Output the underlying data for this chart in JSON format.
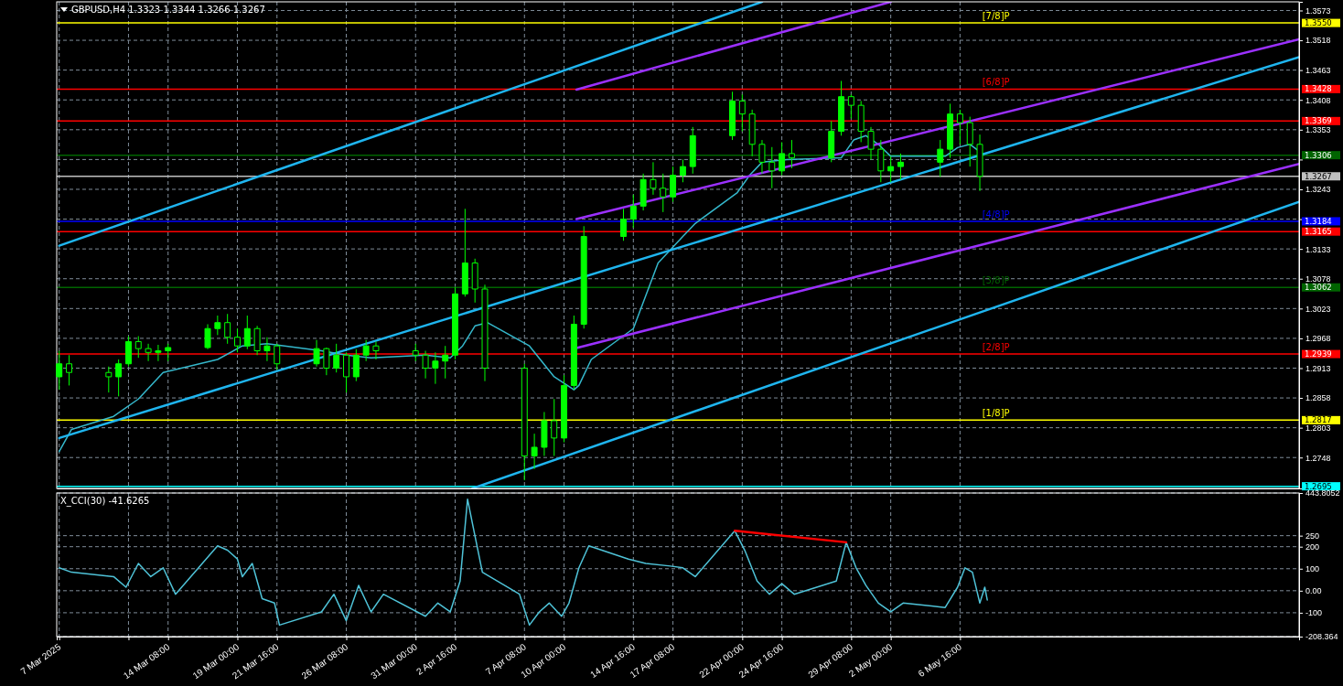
{
  "chart_data": [
    {
      "type": "candlestick",
      "title": "GBPUSD,H4 1.3323 1.3344 1.3266 1.3267",
      "xlim": [
        "2025-03-06T20:00",
        "2025-05-29T12:00"
      ],
      "ylim": [
        1.2691,
        1.3589
      ],
      "xticks": [
        "2025-03-07T00:00",
        "2025-03-11T16:00",
        "2025-03-14T08:00",
        "2025-03-19T00:00",
        "2025-03-21T16:00",
        "2025-03-26T08:00",
        "2025-03-31T00:00",
        "2025-04-02T16:00",
        "2025-04-07T08:00",
        "2025-04-10T00:00",
        "2025-04-14T16:00",
        "2025-04-17T08:00",
        "2025-04-22T00:00",
        "2025-04-24T16:00",
        "2025-04-29T08:00",
        "2025-05-02T00:00",
        "2025-05-06T16:00"
      ],
      "yticks": [
        1.2748,
        1.2803,
        1.2858,
        1.2913,
        1.2968,
        1.3023,
        1.3078,
        1.3133,
        {
          "value": 1.3188,
          "label": null
        },
        1.3243,
        {
          "value": 1.3298,
          "label": null
        },
        1.3353,
        1.3408,
        1.3463,
        1.3518,
        1.3573
      ],
      "tick_labels": "y",
      "grid": true,
      "series": [
        {
          "color": "#00ff00",
          "x": [
            "2025-03-07T00:00",
            "2025-03-07T16:00",
            "2025-03-10T08:00",
            "2025-03-11T00:00",
            "2025-03-11T16:00",
            "2025-03-12T08:00",
            "2025-03-13T00:00",
            "2025-03-13T16:00",
            "2025-03-14T08:00",
            "2025-03-17T00:00",
            "2025-03-17T16:00",
            "2025-03-18T08:00",
            "2025-03-19T00:00",
            "2025-03-19T16:00",
            "2025-03-20T08:00",
            "2025-03-21T00:00",
            "2025-03-21T16:00",
            "2025-03-24T08:00",
            "2025-03-25T00:00",
            "2025-03-25T16:00",
            "2025-03-26T08:00",
            "2025-03-27T00:00",
            "2025-03-27T16:00",
            "2025-03-28T08:00",
            "2025-03-31T00:00",
            "2025-03-31T16:00",
            "2025-04-01T08:00",
            "2025-04-02T00:00",
            "2025-04-02T16:00",
            "2025-04-03T08:00",
            "2025-04-04T00:00",
            "2025-04-04T16:00",
            "2025-04-07T08:00",
            "2025-04-08T00:00",
            "2025-04-08T16:00",
            "2025-04-09T08:00",
            "2025-04-10T00:00",
            "2025-04-10T16:00",
            "2025-04-11T08:00",
            "2025-04-14T00:00",
            "2025-04-14T16:00",
            "2025-04-15T08:00",
            "2025-04-16T00:00",
            "2025-04-16T16:00",
            "2025-04-17T08:00",
            "2025-04-18T00:00",
            "2025-04-18T16:00",
            "2025-04-21T08:00",
            "2025-04-22T00:00",
            "2025-04-22T16:00",
            "2025-04-23T08:00",
            "2025-04-24T00:00",
            "2025-04-24T16:00",
            "2025-04-25T08:00",
            "2025-04-28T00:00",
            "2025-04-28T16:00",
            "2025-04-29T08:00",
            "2025-04-30T00:00",
            "2025-04-30T16:00",
            "2025-05-01T08:00",
            "2025-05-02T00:00",
            "2025-05-02T16:00",
            "2025-05-05T08:00",
            "2025-05-06T00:00",
            "2025-05-06T16:00",
            "2025-05-07T08:00",
            "2025-05-08T00:00"
          ],
          "ohlc": [
            [
              1.2897,
              1.2945,
              1.2873,
              1.2921
            ],
            [
              1.2921,
              1.2937,
              1.2881,
              1.2905
            ],
            [
              1.2905,
              1.2916,
              1.2868,
              1.2897
            ],
            [
              1.2897,
              1.2929,
              1.2861,
              1.2921
            ],
            [
              1.2921,
              1.2972,
              1.2916,
              1.2962
            ],
            [
              1.2962,
              1.2972,
              1.2932,
              1.2949
            ],
            [
              1.2949,
              1.2958,
              1.2926,
              1.2942
            ],
            [
              1.2942,
              1.2956,
              1.2926,
              1.2945
            ],
            [
              1.2945,
              1.2958,
              1.2926,
              1.2951
            ],
            [
              1.2951,
              1.2994,
              1.2948,
              1.2986
            ],
            [
              1.2986,
              1.301,
              1.2974,
              1.2997
            ],
            [
              1.2997,
              1.3013,
              1.2958,
              1.297
            ],
            [
              1.297,
              1.2986,
              1.2942,
              1.2954
            ],
            [
              1.2954,
              1.301,
              1.2948,
              1.2986
            ],
            [
              1.2986,
              1.2991,
              1.2937,
              1.2945
            ],
            [
              1.2945,
              1.297,
              1.2926,
              1.2954
            ],
            [
              1.2954,
              1.2958,
              1.291,
              1.2921
            ],
            [
              1.2921,
              1.2965,
              1.2916,
              1.2949
            ],
            [
              1.2949,
              1.2951,
              1.29,
              1.2913
            ],
            [
              1.2913,
              1.2958,
              1.2905,
              1.2937
            ],
            [
              1.2937,
              1.2942,
              1.2868,
              1.2897
            ],
            [
              1.2897,
              1.2948,
              1.2889,
              1.2937
            ],
            [
              1.2937,
              1.2965,
              1.2926,
              1.2954
            ],
            [
              1.2954,
              1.2962,
              1.2929,
              1.2945
            ],
            [
              1.2945,
              1.2958,
              1.2926,
              1.2937
            ],
            [
              1.2937,
              1.2945,
              1.2894,
              1.2913
            ],
            [
              1.2913,
              1.2942,
              1.2884,
              1.2926
            ],
            [
              1.2926,
              1.2954,
              1.2894,
              1.2937
            ],
            [
              1.2937,
              1.3062,
              1.2929,
              1.305
            ],
            [
              1.305,
              1.3207,
              1.3045,
              1.3107
            ],
            [
              1.3107,
              1.3115,
              1.3034,
              1.3059
            ],
            [
              1.3059,
              1.3067,
              1.2889,
              1.2913
            ],
            [
              1.2913,
              1.2921,
              1.2706,
              1.2751
            ],
            [
              1.2751,
              1.2792,
              1.2727,
              1.2767
            ],
            [
              1.2767,
              1.2832,
              1.2751,
              1.2816
            ],
            [
              1.2816,
              1.2856,
              1.2751,
              1.2784
            ],
            [
              1.2784,
              1.29,
              1.2776,
              1.2881
            ],
            [
              1.2881,
              1.301,
              1.2873,
              1.2994
            ],
            [
              1.2994,
              1.3175,
              1.2986,
              1.3156
            ],
            [
              1.3156,
              1.3207,
              1.3148,
              1.3188
            ],
            [
              1.3188,
              1.3233,
              1.3172,
              1.3212
            ],
            [
              1.3212,
              1.3272,
              1.3204,
              1.3261
            ],
            [
              1.3261,
              1.3293,
              1.3233,
              1.3245
            ],
            [
              1.3245,
              1.3272,
              1.3201,
              1.3229
            ],
            [
              1.3229,
              1.3285,
              1.322,
              1.3269
            ],
            [
              1.3269,
              1.3298,
              1.3256,
              1.3285
            ],
            [
              1.3285,
              1.3358,
              1.3272,
              1.3342
            ],
            [
              1.3342,
              1.3423,
              1.3334,
              1.3406
            ],
            [
              1.3406,
              1.3418,
              1.335,
              1.3382
            ],
            [
              1.3382,
              1.339,
              1.3304,
              1.3326
            ],
            [
              1.3326,
              1.3334,
              1.3272,
              1.3293
            ],
            [
              1.3293,
              1.3321,
              1.3245,
              1.3277
            ],
            [
              1.3277,
              1.333,
              1.3269,
              1.3309
            ],
            [
              1.3309,
              1.3334,
              1.3282,
              1.3301
            ],
            [
              1.3301,
              1.3369,
              1.3293,
              1.335
            ],
            [
              1.335,
              1.3443,
              1.3342,
              1.3414
            ],
            [
              1.3414,
              1.3418,
              1.3374,
              1.3398
            ],
            [
              1.3398,
              1.3406,
              1.333,
              1.335
            ],
            [
              1.335,
              1.3358,
              1.3298,
              1.3317
            ],
            [
              1.3317,
              1.3334,
              1.3256,
              1.3277
            ],
            [
              1.3277,
              1.3304,
              1.3256,
              1.3285
            ],
            [
              1.3285,
              1.3309,
              1.3261,
              1.3293
            ],
            [
              1.3293,
              1.3334,
              1.3266,
              1.3317
            ],
            [
              1.3317,
              1.3401,
              1.3301,
              1.3382
            ],
            [
              1.3382,
              1.339,
              1.3326,
              1.3366
            ],
            [
              1.3366,
              1.3377,
              1.3285,
              1.3326
            ],
            [
              1.3326,
              1.3344,
              1.324,
              1.3267
            ]
          ]
        },
        {
          "type": "line",
          "color": "#35b8cc",
          "x": [
            "2025-03-07T00:00",
            "2025-03-07T20:00",
            "2025-03-10T16:00",
            "2025-03-12T08:00",
            "2025-03-14T00:00",
            "2025-03-17T16:00",
            "2025-03-19T08:00",
            "2025-03-21T00:00",
            "2025-03-24T16:00",
            "2025-03-26T08:00",
            "2025-03-28T00:00",
            "2025-03-31T16:00",
            "2025-04-02T08:00",
            "2025-04-03T04:00",
            "2025-04-04T00:00",
            "2025-04-04T20:00",
            "2025-04-07T16:00",
            "2025-04-09T08:00",
            "2025-04-10T16:00",
            "2025-04-11T00:00",
            "2025-04-11T20:00",
            "2025-04-14T16:00",
            "2025-04-16T08:00",
            "2025-04-18T00:00",
            "2025-04-18T20:00",
            "2025-04-21T16:00",
            "2025-04-22T12:00",
            "2025-04-23T08:00",
            "2025-04-25T00:00",
            "2025-04-28T16:00",
            "2025-04-29T12:00",
            "2025-04-30T08:00",
            "2025-05-01T04:00",
            "2025-05-02T00:00",
            "2025-05-05T16:00",
            "2025-05-06T12:00",
            "2025-05-07T08:00",
            "2025-05-08T04:00"
          ],
          "values": [
            1.2759,
            1.28,
            1.2824,
            1.2856,
            1.2905,
            1.2929,
            1.2954,
            1.2958,
            1.2945,
            1.2937,
            1.2932,
            1.2937,
            1.2932,
            1.2954,
            1.2991,
            1.2997,
            1.2954,
            1.2897,
            1.2873,
            1.2881,
            1.2929,
            1.2986,
            1.3107,
            1.3156,
            1.318,
            1.3237,
            1.3269,
            1.3293,
            1.3298,
            1.3301,
            1.3334,
            1.3342,
            1.3326,
            1.3304,
            1.3304,
            1.332,
            1.3326,
            1.3309
          ]
        },
        {
          "type": "line",
          "color": "#1fb5ef",
          "x": [
            "2025-03-07T00:00",
            "2025-04-23T08:00"
          ],
          "values": [
            1.3139,
            1.3589
          ]
        },
        {
          "type": "line",
          "color": "#1fb5ef",
          "x": [
            "2025-03-07T00:00",
            "2025-05-29T12:00"
          ],
          "values": [
            1.2784,
            1.3487
          ]
        },
        {
          "type": "line",
          "color": "#1fb5ef",
          "x": [
            "2025-04-03T20:00",
            "2025-05-29T12:00"
          ],
          "values": [
            1.2691,
            1.322
          ]
        },
        {
          "type": "line",
          "color": "#9b30ff",
          "x": [
            "2025-04-10T20:00",
            "2025-05-02T00:00"
          ],
          "values": [
            1.3427,
            1.3589
          ]
        },
        {
          "type": "line",
          "color": "#9b30ff",
          "x": [
            "2025-04-10T20:00",
            "2025-05-29T12:00"
          ],
          "values": [
            1.3188,
            1.352
          ]
        },
        {
          "type": "line",
          "color": "#9b30ff",
          "x": [
            "2025-04-10T20:00",
            "2025-05-29T12:00"
          ],
          "values": [
            1.295,
            1.329
          ]
        }
      ],
      "ref_lines": [
        {
          "axis": "y",
          "value": 1.355,
          "label": "1.3550",
          "color": "#ffff00"
        },
        {
          "axis": "y",
          "value": 1.3428,
          "label": "1.3428",
          "color": "#ff0000"
        },
        {
          "axis": "y",
          "value": 1.3369,
          "label": "1.3369",
          "color": "#ff0000"
        },
        {
          "axis": "y",
          "value": 1.3306,
          "label": "1.3306",
          "color": "#006400"
        },
        {
          "axis": "y",
          "value": 1.3267,
          "label": "1.3267",
          "color": "#c0c0c0"
        },
        {
          "axis": "y",
          "value": 1.3184,
          "label": "1.3184",
          "color": "#0000ff"
        },
        {
          "axis": "y",
          "value": 1.3165,
          "label": "1.3165",
          "color": "#ff0000"
        },
        {
          "axis": "y",
          "value": 1.3062,
          "label": "1.3062",
          "color": "#006400"
        },
        {
          "axis": "y",
          "value": 1.2939,
          "label": "1.2939",
          "color": "#ff0000"
        },
        {
          "axis": "y",
          "value": 1.2817,
          "label": "1.2817",
          "color": "#ffff00"
        },
        {
          "axis": "y",
          "value": 1.2695,
          "label": "1.2695",
          "color": "#00ffff"
        }
      ],
      "annotations": [
        {
          "text": "[7/8]P",
          "y": 1.355
        },
        {
          "text": "[6/8]P",
          "y": 1.3428
        },
        {
          "text": "[4/8]P",
          "y": 1.3184
        },
        {
          "text": "[3/8]P",
          "y": 1.3062
        },
        {
          "text": "[2/8]P",
          "y": 1.2939
        },
        {
          "text": "[1/8]P",
          "y": 1.2817
        }
      ]
    },
    {
      "type": "line",
      "title": "X_CCI(30) -41.6265",
      "xlim": [
        "2025-03-06T20:00",
        "2025-05-29T12:00"
      ],
      "ylim": [
        -208.364,
        443.8052
      ],
      "xticks": [
        {
          "value": "2025-03-07T00:00",
          "label": "7 Mar 2025"
        },
        {
          "value": "2025-03-11T16:00",
          "label": null
        },
        {
          "value": "2025-03-14T08:00",
          "label": "14 Mar 08:00"
        },
        {
          "value": "2025-03-19T00:00",
          "label": "19 Mar 00:00"
        },
        {
          "value": "2025-03-21T16:00",
          "label": "21 Mar 16:00"
        },
        {
          "value": "2025-03-26T08:00",
          "label": "26 Mar 08:00"
        },
        {
          "value": "2025-03-31T00:00",
          "label": "31 Mar 00:00"
        },
        {
          "value": "2025-04-02T16:00",
          "label": "2 Apr 16:00"
        },
        {
          "value": "2025-04-07T08:00",
          "label": "7 Apr 08:00"
        },
        {
          "value": "2025-04-10T00:00",
          "label": "10 Apr 00:00"
        },
        {
          "value": "2025-04-14T16:00",
          "label": "14 Apr 16:00"
        },
        {
          "value": "2025-04-17T08:00",
          "label": "17 Apr 08:00"
        },
        {
          "value": "2025-04-22T00:00",
          "label": "22 Apr 00:00"
        },
        {
          "value": "2025-04-24T16:00",
          "label": "24 Apr 16:00"
        },
        {
          "value": "2025-04-29T08:00",
          "label": "29 Apr 08:00"
        },
        {
          "value": "2025-05-02T00:00",
          "label": "2 May 00:00"
        },
        {
          "value": "2025-05-06T16:00",
          "label": "6 May 16:00"
        }
      ],
      "yticks": [
        -208.364,
        -100,
        {
          "value": 0,
          "label": "0.00"
        },
        100,
        200,
        250,
        443.8052
      ],
      "grid": true,
      "series": [
        {
          "color": "#4fc3d8",
          "x": [
            "2025-03-07T00:00",
            "2025-03-07T20:00",
            "2025-03-10T16:00",
            "2025-03-11T12:00",
            "2025-03-12T08:00",
            "2025-03-13T04:00",
            "2025-03-14T00:00",
            "2025-03-14T20:00",
            "2025-03-17T16:00",
            "2025-03-18T08:00",
            "2025-03-19T00:00",
            "2025-03-19T08:00",
            "2025-03-20T00:00",
            "2025-03-20T16:00",
            "2025-03-21T12:00",
            "2025-03-21T20:00",
            "2025-03-24T16:00",
            "2025-03-25T12:00",
            "2025-03-26T08:00",
            "2025-03-27T04:00",
            "2025-03-28T00:00",
            "2025-03-28T20:00",
            "2025-03-31T16:00",
            "2025-04-01T12:00",
            "2025-04-02T08:00",
            "2025-04-03T00:00",
            "2025-04-03T12:00",
            "2025-04-03T20:00",
            "2025-04-04T12:00",
            "2025-04-07T00:00",
            "2025-04-07T16:00",
            "2025-04-08T08:00",
            "2025-04-09T00:00",
            "2025-04-09T20:00",
            "2025-04-10T08:00",
            "2025-04-11T00:00",
            "2025-04-11T16:00",
            "2025-04-14T08:00",
            "2025-04-15T12:00",
            "2025-04-17T04:00",
            "2025-04-18T00:00",
            "2025-04-18T20:00",
            "2025-04-21T12:00",
            "2025-04-22T04:00",
            "2025-04-23T00:00",
            "2025-04-23T20:00",
            "2025-04-24T16:00",
            "2025-04-25T12:00",
            "2025-04-28T08:00",
            "2025-04-29T00:00",
            "2025-04-29T16:00",
            "2025-04-30T08:00",
            "2025-05-01T04:00",
            "2025-05-02T00:00",
            "2025-05-02T20:00",
            "2025-05-05T16:00",
            "2025-05-06T12:00",
            "2025-05-07T00:00",
            "2025-05-07T12:00",
            "2025-05-08T00:00",
            "2025-05-08T08:00",
            "2025-05-08T12:00"
          ],
          "values": [
            104,
            84,
            64,
            16,
            124,
            64,
            104,
            -16,
            204,
            184,
            144,
            64,
            124,
            -36,
            -56,
            -156,
            -96,
            -16,
            -136,
            24,
            -96,
            -16,
            -116,
            -56,
            -96,
            44,
            416,
            304,
            84,
            -16,
            -156,
            -96,
            -56,
            -116,
            -56,
            104,
            204,
            144,
            124,
            112,
            104,
            64,
            272,
            184,
            44,
            -16,
            32,
            -16,
            44,
            220,
            104,
            24,
            -56,
            -96,
            -56,
            -76,
            16,
            104,
            84,
            -56,
            16,
            -42
          ]
        },
        {
          "color": "#ff0000",
          "x": [
            "2025-04-21T12:00",
            "2025-04-29T00:00"
          ],
          "values": [
            272,
            220
          ]
        }
      ]
    }
  ]
}
